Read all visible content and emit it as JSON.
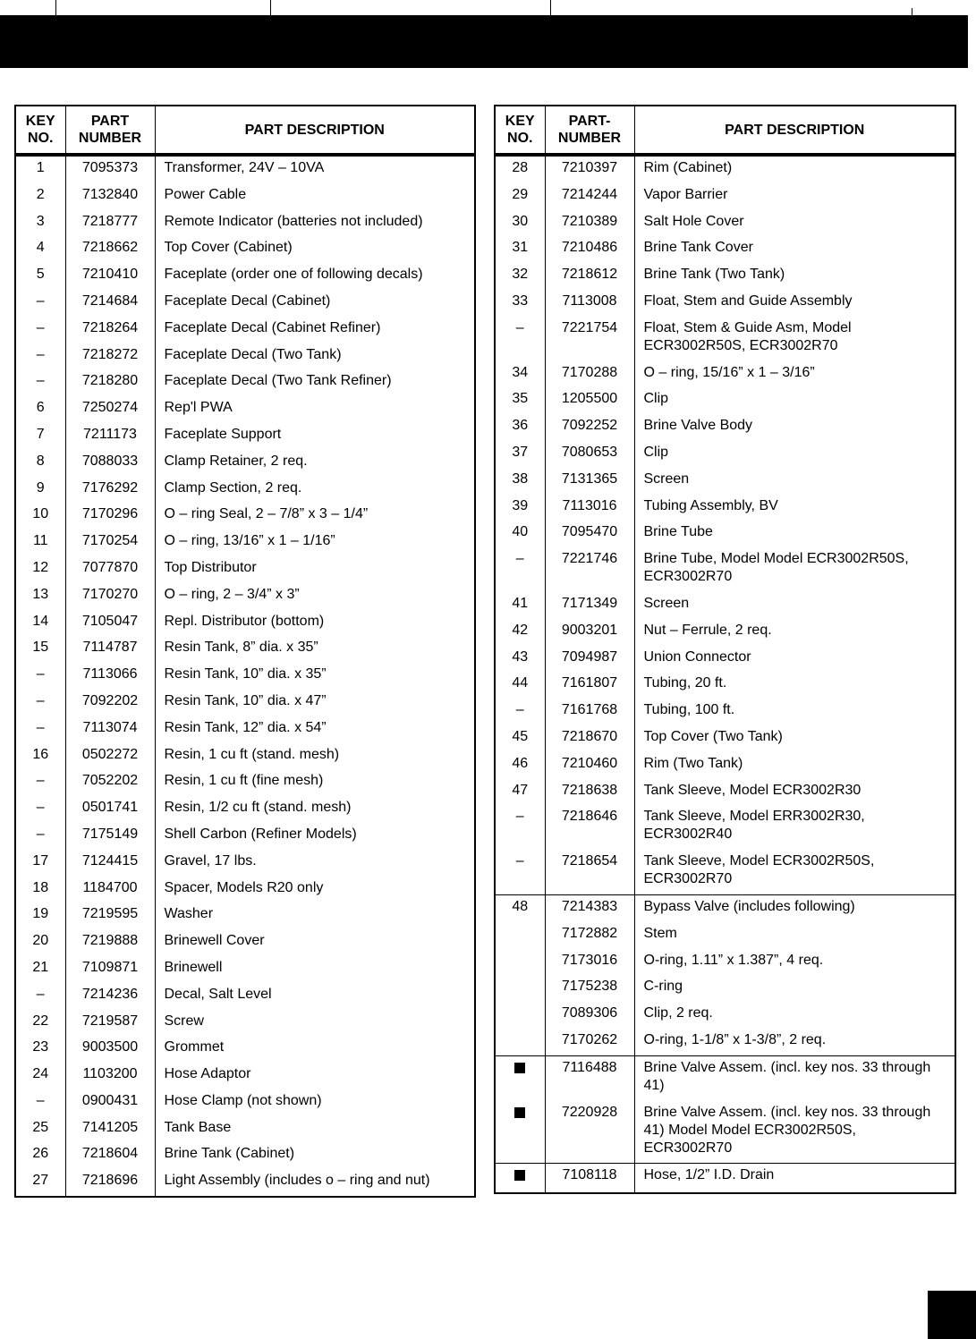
{
  "headers_left": {
    "key": "KEY NO.",
    "part": "PART NUMBER",
    "desc": "PART DESCRIPTION"
  },
  "headers_right": {
    "key": "KEY NO.",
    "part": "PART- NUMBER",
    "desc": "PART DESCRIPTION"
  },
  "left_rows": [
    [
      "1",
      "7095373",
      "Transformer, 24V – 10VA"
    ],
    [
      "2",
      "7132840",
      "Power Cable"
    ],
    [
      "3",
      "7218777",
      "Remote Indicator (batteries not included)"
    ],
    [
      "4",
      "7218662",
      "Top Cover (Cabinet)"
    ],
    [
      "5",
      "7210410",
      "Faceplate (order one of following decals)"
    ],
    [
      "–",
      "7214684",
      "Faceplate Decal (Cabinet)"
    ],
    [
      "–",
      "7218264",
      "Faceplate Decal (Cabinet Refiner)"
    ],
    [
      "–",
      "7218272",
      "Faceplate Decal (Two Tank)"
    ],
    [
      "–",
      "7218280",
      "Faceplate Decal (Two Tank Refiner)"
    ],
    [
      "6",
      "7250274",
      "Rep'l PWA"
    ],
    [
      "7",
      "7211173",
      "Faceplate Support"
    ],
    [
      "8",
      "7088033",
      "Clamp Retainer, 2 req."
    ],
    [
      "9",
      "7176292",
      "Clamp Section, 2 req."
    ],
    [
      "10",
      "7170296",
      "O – ring Seal, 2 – 7/8” x 3 – 1/4”"
    ],
    [
      "11",
      "7170254",
      "O – ring, 13/16” x 1 – 1/16”"
    ],
    [
      "12",
      "7077870",
      "Top Distributor"
    ],
    [
      "13",
      "7170270",
      "O – ring, 2 – 3/4” x 3”"
    ],
    [
      "14",
      "7105047",
      "Repl. Distributor (bottom)"
    ],
    [
      "15",
      "7114787",
      "Resin Tank, 8” dia. x 35”"
    ],
    [
      "–",
      "7113066",
      "Resin Tank, 10” dia. x 35”"
    ],
    [
      "–",
      "7092202",
      "Resin Tank, 10” dia. x 47”"
    ],
    [
      "–",
      "7113074",
      "Resin Tank, 12” dia. x 54”"
    ],
    [
      "16",
      "0502272",
      "Resin, 1 cu ft (stand. mesh)"
    ],
    [
      "–",
      "7052202",
      "Resin, 1 cu ft (fine mesh)"
    ],
    [
      "–",
      "0501741",
      "Resin, 1/2 cu ft (stand. mesh)"
    ],
    [
      "–",
      "7175149",
      "Shell Carbon (Refiner Models)"
    ],
    [
      "17",
      "7124415",
      "Gravel, 17 lbs."
    ],
    [
      "18",
      "1184700",
      "Spacer, Models R20 only"
    ],
    [
      "19",
      "7219595",
      "Washer"
    ],
    [
      "20",
      "7219888",
      "Brinewell Cover"
    ],
    [
      "21",
      "7109871",
      "Brinewell"
    ],
    [
      "–",
      "7214236",
      "Decal, Salt Level"
    ],
    [
      "22",
      "7219587",
      "Screw"
    ],
    [
      "23",
      "9003500",
      "Grommet"
    ],
    [
      "24",
      "1103200",
      "Hose Adaptor"
    ],
    [
      "–",
      "0900431",
      "Hose Clamp (not shown)"
    ],
    [
      "25",
      "7141205",
      "Tank Base"
    ],
    [
      "26",
      "7218604",
      "Brine Tank (Cabinet)"
    ],
    [
      "27",
      "7218696",
      "Light Assembly (includes o – ring and nut)"
    ]
  ],
  "right_rows": [
    [
      "28",
      "7210397",
      "Rim (Cabinet)"
    ],
    [
      "29",
      "7214244",
      "Vapor Barrier"
    ],
    [
      "30",
      "7210389",
      "Salt Hole Cover"
    ],
    [
      "31",
      "7210486",
      "Brine Tank Cover"
    ],
    [
      "32",
      "7218612",
      "Brine Tank (Two Tank)"
    ],
    [
      "33",
      "7113008",
      "Float, Stem and Guide Assembly"
    ],
    [
      "–",
      "7221754",
      "Float, Stem & Guide Asm, Model ECR3002R50S, ECR3002R70"
    ],
    [
      "34",
      "7170288",
      "O – ring, 15/16” x 1 – 3/16”"
    ],
    [
      "35",
      "1205500",
      "Clip"
    ],
    [
      "36",
      "7092252",
      "Brine Valve Body"
    ],
    [
      "37",
      "7080653",
      "Clip"
    ],
    [
      "38",
      "7131365",
      "Screen"
    ],
    [
      "39",
      "7113016",
      "Tubing Assembly, BV"
    ],
    [
      "40",
      "7095470",
      "Brine Tube"
    ],
    [
      "–",
      "7221746",
      "Brine Tube, Model Model ECR3002R50S, ECR3002R70"
    ],
    [
      "41",
      "7171349",
      "Screen"
    ],
    [
      "42",
      "9003201",
      "Nut – Ferrule, 2 req."
    ],
    [
      "43",
      "7094987",
      "Union Connector"
    ],
    [
      "44",
      "7161807",
      "Tubing, 20 ft."
    ],
    [
      "–",
      "7161768",
      "Tubing, 100 ft."
    ],
    [
      "45",
      "7218670",
      "Top Cover (Two Tank)"
    ],
    [
      "46",
      "7210460",
      "Rim (Two Tank)"
    ],
    [
      "47",
      "7218638",
      "Tank Sleeve, Model ECR3002R30"
    ],
    [
      "–",
      "7218646",
      "Tank Sleeve, Model ERR3002R30, ECR3002R40"
    ],
    [
      "–",
      "7218654",
      "Tank Sleeve, Model ECR3002R50S, ECR3002R70"
    ],
    [
      "48",
      "7214383",
      "Bypass Valve (includes following)"
    ],
    [
      "",
      "7172882",
      "Stem"
    ],
    [
      "",
      "7173016",
      "O-ring, 1.11” x 1.387”, 4 req."
    ],
    [
      "",
      "7175238",
      "C-ring"
    ],
    [
      "",
      "7089306",
      "Clip, 2 req."
    ],
    [
      "",
      "7170262",
      "O-ring, 1-1/8” x 1-3/8”, 2 req."
    ],
    [
      "■",
      "7116488",
      "Brine Valve Assem. (incl. key nos. 33 through 41)"
    ],
    [
      "■",
      "7220928",
      "Brine Valve Assem. (incl. key nos. 33 through 41) Model Model ECR3002R50S, ECR3002R70"
    ],
    [
      "■",
      "7108118",
      "Hose, 1/2” I.D. Drain"
    ]
  ],
  "right_group_starts": [
    25,
    31,
    33
  ]
}
